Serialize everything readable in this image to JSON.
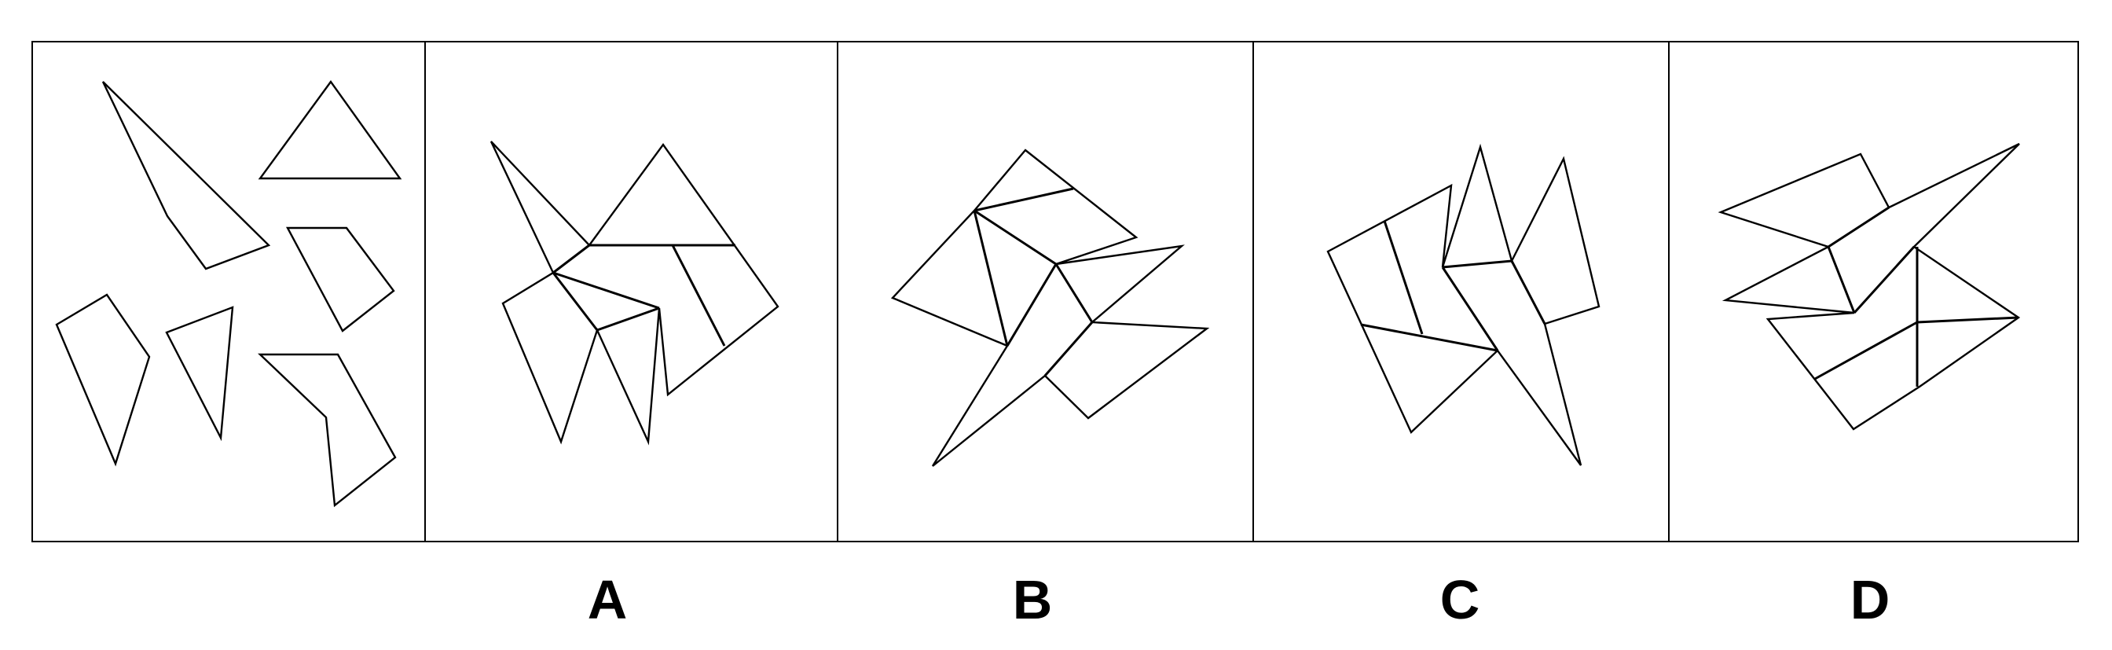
{
  "options": [
    {
      "id": "a",
      "label": "A"
    },
    {
      "id": "b",
      "label": "B"
    },
    {
      "id": "c",
      "label": "C"
    },
    {
      "id": "d",
      "label": "D"
    }
  ]
}
